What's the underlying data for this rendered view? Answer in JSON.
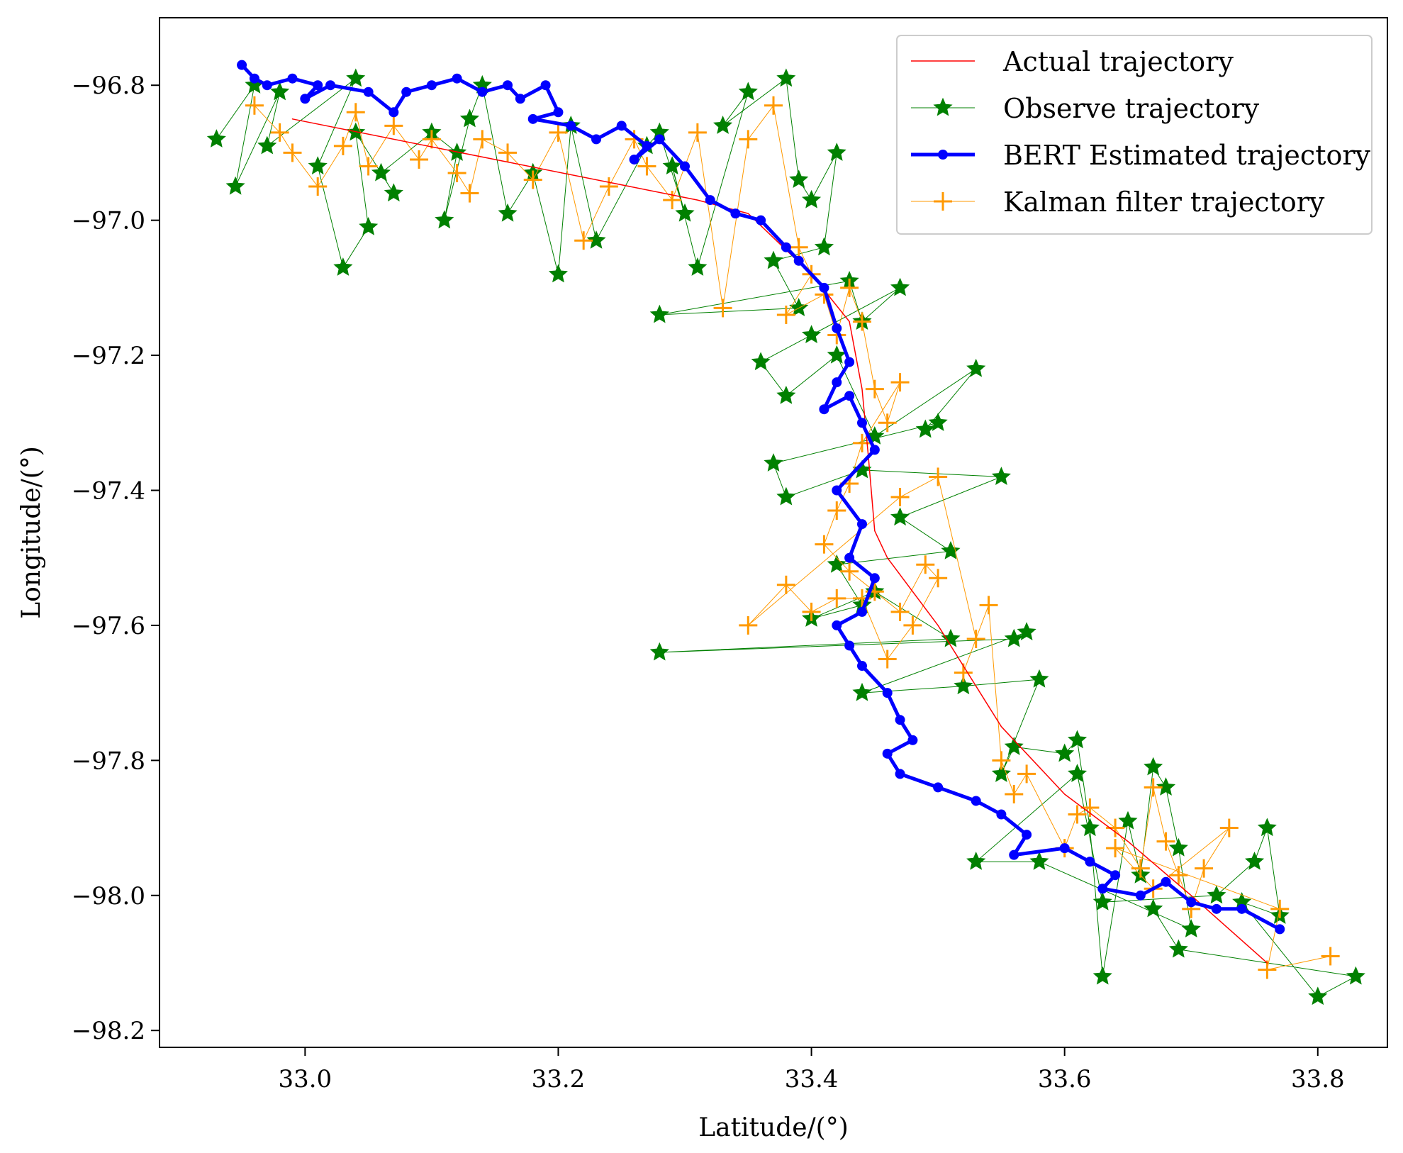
{
  "chart_data": {
    "type": "line",
    "title": "",
    "xlabel": "Latitude/(°)",
    "ylabel": "Longitude/(°)",
    "xlim": [
      32.885,
      33.855
    ],
    "ylim": [
      -98.225,
      -96.7
    ],
    "xticks": [
      33.0,
      33.2,
      33.4,
      33.6,
      33.8
    ],
    "yticks": [
      -96.8,
      -97.0,
      -97.2,
      -97.4,
      -97.6,
      -97.8,
      -98.0,
      -98.2
    ],
    "xtick_labels": [
      "33.0",
      "33.2",
      "33.4",
      "33.6",
      "33.8"
    ],
    "ytick_labels": [
      "−96.8",
      "−97.0",
      "−97.2",
      "−97.4",
      "−97.6",
      "−97.8",
      "−98.0",
      "−98.2"
    ],
    "grid": false,
    "legend_position": "top-right",
    "colors": {
      "actual": "#ff0000",
      "observe": "#008000",
      "bert": "#0000ff",
      "kalman": "#ff9900"
    },
    "series": [
      {
        "name": "Actual trajectory",
        "key": "actual",
        "marker": "none",
        "x": [
          32.99,
          33.31,
          33.35,
          33.4,
          33.43,
          33.44,
          33.445,
          33.45,
          33.46,
          33.5,
          33.55,
          33.6,
          33.65,
          33.7,
          33.76
        ],
        "y": [
          -96.85,
          -96.97,
          -96.99,
          -97.08,
          -97.15,
          -97.25,
          -97.35,
          -97.46,
          -97.5,
          -97.6,
          -97.75,
          -97.85,
          -97.92,
          -98.0,
          -98.1
        ]
      },
      {
        "name": "Observe trajectory",
        "key": "observe",
        "marker": "star",
        "x": [
          32.93,
          32.96,
          32.945,
          32.98,
          32.97,
          33.04,
          33.01,
          33.03,
          33.05,
          33.04,
          33.07,
          33.06,
          33.1,
          33.12,
          33.11,
          33.13,
          33.14,
          33.16,
          33.18,
          33.2,
          33.21,
          33.23,
          33.27,
          33.28,
          33.3,
          33.29,
          33.31,
          33.35,
          33.33,
          33.38,
          33.39,
          33.4,
          33.42,
          33.41,
          33.37,
          33.39,
          33.28,
          33.43,
          33.44,
          33.47,
          33.4,
          33.36,
          33.38,
          33.42,
          33.45,
          33.53,
          33.49,
          33.5,
          33.37,
          33.38,
          33.44,
          33.55,
          33.47,
          33.51,
          33.42,
          33.44,
          33.4,
          33.45,
          33.51,
          33.28,
          33.56,
          33.57,
          33.44,
          33.52,
          33.58,
          33.55,
          33.56,
          33.6,
          33.61,
          33.62,
          33.63,
          33.65,
          33.66,
          33.67,
          33.68,
          33.69,
          33.7,
          33.58,
          33.53,
          33.61,
          33.63,
          33.72,
          33.75,
          33.76,
          33.77,
          33.74,
          33.8,
          33.83,
          33.69,
          33.67
        ],
        "y": [
          -96.88,
          -96.8,
          -96.95,
          -96.81,
          -96.89,
          -96.79,
          -96.92,
          -97.07,
          -97.01,
          -96.87,
          -96.96,
          -96.93,
          -96.87,
          -96.9,
          -97.0,
          -96.85,
          -96.8,
          -96.99,
          -96.93,
          -97.08,
          -96.86,
          -97.03,
          -96.89,
          -96.87,
          -96.99,
          -96.92,
          -97.07,
          -96.81,
          -96.86,
          -96.79,
          -96.94,
          -96.97,
          -96.9,
          -97.04,
          -97.06,
          -97.13,
          -97.14,
          -97.09,
          -97.15,
          -97.1,
          -97.17,
          -97.21,
          -97.26,
          -97.2,
          -97.32,
          -97.22,
          -97.31,
          -97.3,
          -97.36,
          -97.41,
          -97.37,
          -97.38,
          -97.44,
          -97.49,
          -97.51,
          -97.57,
          -97.59,
          -97.55,
          -97.62,
          -97.64,
          -97.62,
          -97.61,
          -97.7,
          -97.69,
          -97.68,
          -97.82,
          -97.78,
          -97.79,
          -97.77,
          -97.9,
          -98.12,
          -97.89,
          -97.97,
          -97.81,
          -97.84,
          -97.93,
          -98.05,
          -97.95,
          -97.95,
          -97.82,
          -98.01,
          -98.0,
          -97.95,
          -97.9,
          -98.03,
          -98.01,
          -98.15,
          -98.12,
          -98.08,
          -98.02
        ]
      },
      {
        "name": "BERT Estimated trajectory",
        "key": "bert",
        "marker": "circle",
        "x": [
          32.95,
          32.96,
          32.97,
          32.99,
          33.01,
          33.0,
          33.02,
          33.05,
          33.07,
          33.08,
          33.1,
          33.12,
          33.14,
          33.16,
          33.17,
          33.19,
          33.2,
          33.18,
          33.21,
          33.23,
          33.25,
          33.27,
          33.26,
          33.28,
          33.3,
          33.32,
          33.34,
          33.36,
          33.38,
          33.39,
          33.41,
          33.42,
          33.43,
          33.42,
          33.41,
          33.43,
          33.44,
          33.45,
          33.42,
          33.44,
          33.43,
          33.45,
          33.44,
          33.42,
          33.43,
          33.44,
          33.46,
          33.47,
          33.48,
          33.46,
          33.47,
          33.5,
          33.53,
          33.55,
          33.57,
          33.56,
          33.6,
          33.62,
          33.64,
          33.63,
          33.66,
          33.68,
          33.7,
          33.72,
          33.74,
          33.77
        ],
        "y": [
          -96.77,
          -96.79,
          -96.8,
          -96.79,
          -96.8,
          -96.82,
          -96.8,
          -96.81,
          -96.84,
          -96.81,
          -96.8,
          -96.79,
          -96.81,
          -96.8,
          -96.82,
          -96.8,
          -96.84,
          -96.85,
          -96.86,
          -96.88,
          -96.86,
          -96.89,
          -96.91,
          -96.88,
          -96.92,
          -96.97,
          -96.99,
          -97.0,
          -97.04,
          -97.06,
          -97.1,
          -97.16,
          -97.21,
          -97.24,
          -97.28,
          -97.26,
          -97.3,
          -97.34,
          -97.4,
          -97.45,
          -97.5,
          -97.53,
          -97.58,
          -97.6,
          -97.63,
          -97.66,
          -97.7,
          -97.74,
          -97.77,
          -97.79,
          -97.82,
          -97.84,
          -97.86,
          -97.88,
          -97.91,
          -97.94,
          -97.93,
          -97.95,
          -97.97,
          -97.99,
          -98.0,
          -97.98,
          -98.01,
          -98.02,
          -98.02,
          -98.05
        ]
      },
      {
        "name": "Kalman filter trajectory",
        "key": "kalman",
        "marker": "plus",
        "x": [
          32.96,
          32.98,
          32.99,
          33.01,
          33.03,
          33.04,
          33.05,
          33.07,
          33.09,
          33.1,
          33.12,
          33.13,
          33.14,
          33.16,
          33.18,
          33.2,
          33.22,
          33.24,
          33.26,
          33.27,
          33.29,
          33.31,
          33.33,
          33.35,
          33.37,
          33.39,
          33.4,
          33.38,
          33.41,
          33.42,
          33.43,
          33.44,
          33.45,
          33.46,
          33.47,
          33.44,
          33.43,
          33.42,
          33.41,
          33.43,
          33.45,
          33.47,
          33.49,
          33.5,
          33.48,
          33.46,
          33.44,
          33.42,
          33.4,
          33.38,
          33.35,
          33.47,
          33.5,
          33.53,
          33.52,
          33.54,
          33.55,
          33.56,
          33.57,
          33.6,
          33.61,
          33.62,
          33.64,
          33.66,
          33.67,
          33.68,
          33.69,
          33.7,
          33.71,
          33.73,
          33.67,
          33.64,
          33.77,
          33.76,
          33.81
        ],
        "y": [
          -96.83,
          -96.87,
          -96.9,
          -96.95,
          -96.89,
          -96.84,
          -96.92,
          -96.86,
          -96.91,
          -96.88,
          -96.93,
          -96.96,
          -96.88,
          -96.9,
          -96.94,
          -96.87,
          -97.03,
          -96.95,
          -96.88,
          -96.92,
          -96.97,
          -96.87,
          -97.13,
          -96.88,
          -96.83,
          -97.04,
          -97.08,
          -97.14,
          -97.11,
          -97.17,
          -97.1,
          -97.15,
          -97.25,
          -97.3,
          -97.24,
          -97.33,
          -97.39,
          -97.43,
          -97.48,
          -97.52,
          -97.55,
          -97.58,
          -97.51,
          -97.53,
          -97.6,
          -97.65,
          -97.56,
          -97.56,
          -97.58,
          -97.54,
          -97.6,
          -97.41,
          -97.38,
          -97.62,
          -97.67,
          -97.57,
          -97.8,
          -97.85,
          -97.82,
          -97.93,
          -97.88,
          -97.87,
          -97.9,
          -97.96,
          -97.84,
          -97.92,
          -97.97,
          -98.02,
          -97.96,
          -97.9,
          -97.99,
          -97.93,
          -98.02,
          -98.11,
          -98.09
        ]
      }
    ]
  }
}
